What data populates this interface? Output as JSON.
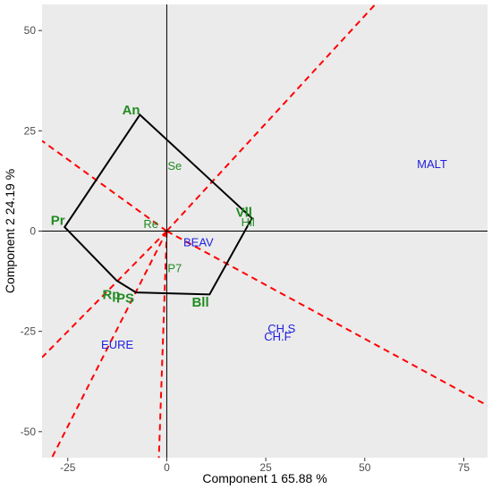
{
  "chart_data": {
    "type": "scatter",
    "title": "",
    "xlabel": "Component 1 65.88 %",
    "ylabel": "Component 2 24.19 %",
    "xlim": [
      -31.5,
      81
    ],
    "ylim": [
      -56.5,
      56.5
    ],
    "xticks": [
      -25,
      0,
      25,
      50,
      75
    ],
    "yticks": [
      -50,
      -25,
      0,
      25,
      50
    ],
    "xtick_labels": [
      "-25",
      "0",
      "25",
      "50",
      "75"
    ],
    "ytick_labels": [
      "-50",
      "-25",
      "0",
      "25",
      "50"
    ],
    "grid": false,
    "background": "#ebebeb",
    "colors": {
      "genotype_label": "#228b22",
      "environment_label": "#2020e0",
      "hull": "#000000",
      "rays": "#ff0000"
    },
    "hull_vertices": [
      {
        "x": -6.8,
        "y": 29
      },
      {
        "x": 21.5,
        "y": 3.2
      },
      {
        "x": 10.8,
        "y": -15.8
      },
      {
        "x": -7.8,
        "y": -15.3
      },
      {
        "x": -12.7,
        "y": -12.3
      },
      {
        "x": -25.8,
        "y": 1
      }
    ],
    "genotypes": [
      {
        "label": "An",
        "x": -9,
        "y": 30,
        "bold": true
      },
      {
        "label": "Pr",
        "x": -27.5,
        "y": 2.5,
        "bold": true
      },
      {
        "label": "Vll",
        "x": 19.5,
        "y": 4.5,
        "bold": true
      },
      {
        "label": "Bll",
        "x": 8.5,
        "y": -18,
        "bold": true
      },
      {
        "label": "Rp",
        "x": -14,
        "y": -16,
        "bold": true
      },
      {
        "label": "PS",
        "x": -10.5,
        "y": -17,
        "bold": true
      },
      {
        "label": "Se",
        "x": 2,
        "y": 16,
        "bold": false
      },
      {
        "label": "Re",
        "x": -4,
        "y": 1.5,
        "bold": false
      },
      {
        "label": "P7",
        "x": 2,
        "y": -9.5,
        "bold": false
      },
      {
        "label": "Hll",
        "x": 20.5,
        "y": 2,
        "bold": false
      }
    ],
    "environments": [
      {
        "label": "MALT",
        "x": 67,
        "y": 16.5
      },
      {
        "label": "BEAV",
        "x": 8,
        "y": -3
      },
      {
        "label": "CH.S",
        "x": 29,
        "y": -24.5
      },
      {
        "label": "CH.F",
        "x": 28,
        "y": -26.5
      },
      {
        "label": "EURE",
        "x": -12.5,
        "y": -28.5
      }
    ],
    "rays": [
      {
        "x1": 0,
        "y1": 0,
        "x2": 81,
        "y2": 87
      },
      {
        "x1": 0,
        "y1": 0,
        "x2": -31.5,
        "y2": -31.5
      },
      {
        "x1": 0,
        "y1": 0,
        "x2": -31.5,
        "y2": 22.5
      },
      {
        "x1": 0,
        "y1": 0,
        "x2": 81,
        "y2": -43.5
      },
      {
        "x1": 0,
        "y1": 0,
        "x2": -29,
        "y2": -56.5
      },
      {
        "x1": 0,
        "y1": 0,
        "x2": -2,
        "y2": -56.5
      }
    ]
  }
}
